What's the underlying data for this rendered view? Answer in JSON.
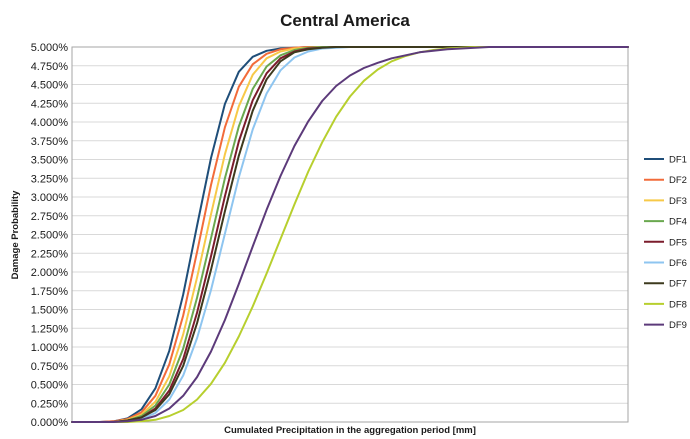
{
  "chart_data": {
    "type": "line",
    "title": "Central America",
    "xlabel": "Cumulated Precipitation in the aggregation period [mm]",
    "ylabel": "Damage Probability",
    "ylim": [
      0,
      0.05
    ],
    "yticks": [
      "0.000%",
      "0.250%",
      "0.500%",
      "0.750%",
      "1.000%",
      "1.250%",
      "1.500%",
      "1.750%",
      "2.000%",
      "2.250%",
      "2.500%",
      "2.750%",
      "3.000%",
      "3.250%",
      "3.500%",
      "3.750%",
      "4.000%",
      "4.250%",
      "4.500%",
      "4.750%",
      "5.000%"
    ],
    "grid": "horizontal",
    "legend": "right",
    "x_axis_note": "no numeric tick labels",
    "xlim": [
      0,
      1
    ],
    "x": [
      0.0,
      0.025,
      0.05,
      0.075,
      0.1,
      0.125,
      0.15,
      0.175,
      0.2,
      0.225,
      0.25,
      0.275,
      0.3,
      0.325,
      0.35,
      0.375,
      0.4,
      0.425,
      0.45,
      0.475,
      0.5,
      0.525,
      0.55,
      0.575,
      0.6,
      0.625,
      0.65,
      0.675,
      0.7,
      0.725,
      0.75,
      0.775,
      0.8,
      0.825,
      0.85,
      0.875,
      0.9,
      0.925,
      0.95,
      0.975,
      1.0
    ],
    "series": [
      {
        "name": "DF1",
        "color": "#1f4e79",
        "values": [
          0.0,
          0.0,
          0.0,
          0.0001,
          0.0005,
          0.0017,
          0.0045,
          0.0095,
          0.017,
          0.0262,
          0.0352,
          0.0424,
          0.0467,
          0.0487,
          0.0495,
          0.0498,
          0.0499,
          0.05,
          0.05,
          0.05,
          0.05,
          0.05,
          0.05,
          0.05,
          0.05,
          0.05,
          0.05,
          0.05,
          0.05,
          0.05,
          0.05,
          0.05,
          0.05,
          0.05,
          0.05,
          0.05,
          0.05,
          0.05,
          0.05,
          0.05,
          0.05
        ]
      },
      {
        "name": "DF2",
        "color": "#f26b3a",
        "values": [
          0.0,
          0.0,
          0.0,
          0.0001,
          0.0004,
          0.0013,
          0.0035,
          0.0077,
          0.0142,
          0.0227,
          0.0316,
          0.0393,
          0.0447,
          0.0477,
          0.0491,
          0.0497,
          0.0499,
          0.05,
          0.05,
          0.05,
          0.05,
          0.05,
          0.05,
          0.05,
          0.05,
          0.05,
          0.05,
          0.05,
          0.05,
          0.05,
          0.05,
          0.05,
          0.05,
          0.05,
          0.05,
          0.05,
          0.05,
          0.05,
          0.05,
          0.05,
          0.05
        ]
      },
      {
        "name": "DF3",
        "color": "#f7c948",
        "values": [
          0.0,
          0.0,
          0.0,
          0.0,
          0.0003,
          0.001,
          0.0027,
          0.0061,
          0.0117,
          0.0193,
          0.0277,
          0.0357,
          0.0421,
          0.0463,
          0.0485,
          0.0494,
          0.0498,
          0.0499,
          0.05,
          0.05,
          0.05,
          0.05,
          0.05,
          0.05,
          0.05,
          0.05,
          0.05,
          0.05,
          0.05,
          0.05,
          0.05,
          0.05,
          0.05,
          0.05,
          0.05,
          0.05,
          0.05,
          0.05,
          0.05,
          0.05,
          0.05
        ]
      },
      {
        "name": "DF4",
        "color": "#6aa84f",
        "values": [
          0.0,
          0.0,
          0.0,
          0.0,
          0.0002,
          0.0008,
          0.0022,
          0.005,
          0.0098,
          0.0166,
          0.0245,
          0.0325,
          0.0394,
          0.0444,
          0.0474,
          0.0489,
          0.0496,
          0.0499,
          0.05,
          0.05,
          0.05,
          0.05,
          0.05,
          0.05,
          0.05,
          0.05,
          0.05,
          0.05,
          0.05,
          0.05,
          0.05,
          0.05,
          0.05,
          0.05,
          0.05,
          0.05,
          0.05,
          0.05,
          0.05,
          0.05,
          0.05
        ]
      },
      {
        "name": "DF5",
        "color": "#7b1c2c",
        "values": [
          0.0,
          0.0,
          0.0,
          0.0,
          0.0002,
          0.0006,
          0.0018,
          0.0042,
          0.0084,
          0.0146,
          0.0221,
          0.0301,
          0.0374,
          0.0429,
          0.0465,
          0.0485,
          0.0494,
          0.0498,
          0.0499,
          0.05,
          0.05,
          0.05,
          0.05,
          0.05,
          0.05,
          0.05,
          0.05,
          0.05,
          0.05,
          0.05,
          0.05,
          0.05,
          0.05,
          0.05,
          0.05,
          0.05,
          0.05,
          0.05,
          0.05,
          0.05,
          0.05
        ]
      },
      {
        "name": "DF6",
        "color": "#8ec5f0",
        "values": [
          0.0,
          0.0,
          0.0,
          0.0,
          0.0001,
          0.0004,
          0.0012,
          0.003,
          0.0062,
          0.0112,
          0.0176,
          0.0251,
          0.0326,
          0.039,
          0.0438,
          0.0469,
          0.0486,
          0.0494,
          0.0498,
          0.0499,
          0.05,
          0.05,
          0.05,
          0.05,
          0.05,
          0.05,
          0.05,
          0.05,
          0.05,
          0.05,
          0.05,
          0.05,
          0.05,
          0.05,
          0.05,
          0.05,
          0.05,
          0.05,
          0.05,
          0.05,
          0.05
        ]
      },
      {
        "name": "DF7",
        "color": "#3d3a1e",
        "values": [
          0.0,
          0.0,
          0.0,
          0.0,
          0.0002,
          0.0006,
          0.0016,
          0.0037,
          0.0075,
          0.0132,
          0.0203,
          0.0281,
          0.0355,
          0.0415,
          0.0457,
          0.0481,
          0.0493,
          0.0497,
          0.0499,
          0.05,
          0.05,
          0.05,
          0.05,
          0.05,
          0.05,
          0.05,
          0.05,
          0.05,
          0.05,
          0.05,
          0.05,
          0.05,
          0.05,
          0.05,
          0.05,
          0.05,
          0.05,
          0.05,
          0.05,
          0.05,
          0.05
        ]
      },
      {
        "name": "DF8",
        "color": "#b7cf2e",
        "values": [
          0.0,
          0.0,
          0.0,
          0.0,
          0.0,
          0.0001,
          0.0003,
          0.0008,
          0.0016,
          0.003,
          0.0051,
          0.0079,
          0.0114,
          0.0154,
          0.0198,
          0.0244,
          0.029,
          0.0334,
          0.0373,
          0.0407,
          0.0434,
          0.0455,
          0.047,
          0.0481,
          0.0488,
          0.0493,
          0.0496,
          0.0498,
          0.0499,
          0.05,
          0.05,
          0.05,
          0.05,
          0.05,
          0.05,
          0.05,
          0.05,
          0.05,
          0.05,
          0.05,
          0.05
        ]
      },
      {
        "name": "DF9",
        "color": "#5c3a7a",
        "values": [
          0.0,
          0.0,
          0.0,
          0.0,
          0.0001,
          0.0003,
          0.0008,
          0.0018,
          0.0035,
          0.006,
          0.0094,
          0.0136,
          0.0184,
          0.0234,
          0.0283,
          0.0328,
          0.0368,
          0.0401,
          0.0428,
          0.0448,
          0.0462,
          0.0472,
          0.0479,
          0.0485,
          0.0489,
          0.0493,
          0.0495,
          0.0497,
          0.0498,
          0.0499,
          0.05,
          0.05,
          0.05,
          0.05,
          0.05,
          0.05,
          0.05,
          0.05,
          0.05,
          0.05,
          0.05
        ]
      }
    ]
  }
}
